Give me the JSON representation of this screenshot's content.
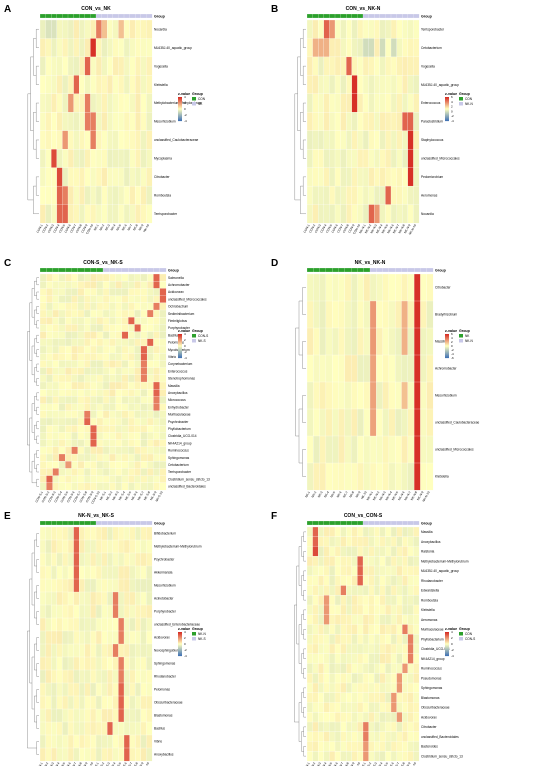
{
  "figure": {
    "legend_title": "z-value",
    "group_title": "Group",
    "colors": {
      "low": "#4575b4",
      "mid": "#ffffbf",
      "high": "#d73027",
      "grp_a": "#2ca02c",
      "grp_b": "#c8c8e8"
    }
  },
  "chart_data": [
    {
      "type": "heatmap",
      "panel": "A",
      "title": "CON_vs_NK",
      "rows": [
        "Nocardia",
        "ML635J-40_aquatic_group",
        "Vogesella",
        "Klebsiella",
        "Methylobacterium-Methylorubrum",
        "Mesorhizobium",
        "unclassified_Caulobacteraceae",
        "Mycoplasma",
        "Citrobacter",
        "Romboutsia",
        "Terrisporobacter"
      ],
      "cols": [
        "CON-1",
        "CON-2",
        "CON-3",
        "CON-4",
        "CON-5",
        "CON-6",
        "CON-7",
        "CON-8",
        "CON-9",
        "CON-10",
        "NK-1",
        "NK-2",
        "NK-3",
        "NK-4",
        "NK-5",
        "NK-6",
        "NK-7",
        "NK-8",
        "NK-9",
        "NK-10"
      ],
      "groups": [
        "CON",
        "NK"
      ],
      "ticks": [
        "4",
        "2",
        "0",
        "-2",
        "-4"
      ],
      "hot": [
        [
          0,
          10,
          2.5
        ],
        [
          0,
          11,
          1.2
        ],
        [
          0,
          14,
          1.2
        ],
        [
          1,
          9,
          4
        ],
        [
          2,
          8,
          3
        ],
        [
          3,
          6,
          3
        ],
        [
          4,
          5,
          2
        ],
        [
          4,
          8,
          2.5
        ],
        [
          5,
          8,
          2.5
        ],
        [
          5,
          9,
          2.5
        ],
        [
          6,
          4,
          2
        ],
        [
          6,
          9,
          2.5
        ],
        [
          7,
          2,
          3.5
        ],
        [
          8,
          3,
          3.5
        ],
        [
          9,
          3,
          3
        ],
        [
          9,
          4,
          2.5
        ],
        [
          10,
          3,
          3
        ],
        [
          10,
          4,
          3
        ]
      ],
      "cold": [
        [
          0,
          1,
          -0.8
        ],
        [
          0,
          2,
          -0.8
        ]
      ]
    },
    {
      "type": "heatmap",
      "panel": "B",
      "title": "CON_vs_NK-N",
      "rows": [
        "Terrisporobacter",
        "Cetobacterium",
        "Vogesella",
        "ML635J-40_aquatic_group",
        "Enterococcus",
        "Paraclostridium",
        "Staphylococcus",
        "unclassified_Micrococcales",
        "Pedomicrobium",
        "Aeromonas",
        "Nocardia"
      ],
      "cols": [
        "CON-1",
        "CON-2",
        "CON-3",
        "CON-4",
        "CON-5",
        "CON-6",
        "CON-7",
        "CON-8",
        "CON-9",
        "CON-10",
        "NK-N-1",
        "NK-N-2",
        "NK-N-3",
        "NK-N-4",
        "NK-N-5",
        "NK-N-6",
        "NK-N-7",
        "NK-N-8",
        "NK-N-9",
        "NK-N-10"
      ],
      "groups": [
        "CON",
        "NK-N"
      ],
      "ticks": [
        "6",
        "4",
        "2",
        "0",
        "-2",
        "-4"
      ],
      "hot": [
        [
          0,
          3,
          3
        ],
        [
          0,
          4,
          2
        ],
        [
          1,
          1,
          1.5
        ],
        [
          1,
          2,
          1.5
        ],
        [
          1,
          3,
          1.5
        ],
        [
          2,
          7,
          3
        ],
        [
          3,
          8,
          4
        ],
        [
          4,
          8,
          4
        ],
        [
          5,
          17,
          3
        ],
        [
          5,
          18,
          3
        ],
        [
          6,
          18,
          4
        ],
        [
          7,
          18,
          4
        ],
        [
          8,
          18,
          4
        ],
        [
          9,
          14,
          3
        ],
        [
          10,
          11,
          3
        ],
        [
          10,
          12,
          2
        ]
      ],
      "cold": [
        [
          1,
          10,
          -1
        ],
        [
          1,
          11,
          -1
        ],
        [
          1,
          13,
          -1
        ],
        [
          1,
          15,
          -1
        ]
      ]
    },
    {
      "type": "heatmap",
      "panel": "C",
      "title": "CON-S_vs_NK-S",
      "rows": [
        "Salmonella",
        "Achromobacter",
        "Acidovorax",
        "unclassified_Micrococcales",
        "Ochrobactrum",
        "Sediminibacterium",
        "Fimbriiglobus",
        "Porphyrobacter",
        "Bacillus",
        "Pelomonas",
        "Mycobacterium",
        "Vibrio",
        "Corynebacterium",
        "Enterococcus",
        "Stenotrophomonas",
        "Massilia",
        "Anoxybacillus",
        "Micrococcus",
        "Enhydrobacter",
        "Muribaculaceae",
        "Psychrobacter",
        "Phyllobacterium",
        "Clostridia_UCG-014",
        "NK4A214_group",
        "Ruminococcus",
        "Sphingomonas",
        "Cetobacterium",
        "Terrisporobacter",
        "Clostridium_sensu_stricto_13",
        "unclassified_Bacteroidales"
      ],
      "cols": [
        "CON-S-1",
        "CON-S-2",
        "CON-S-3",
        "CON-S-4",
        "CON-S-5",
        "CON-S-6",
        "CON-S-7",
        "CON-S-8",
        "CON-S-9",
        "CON-S-10",
        "NK-S-1",
        "NK-S-2",
        "NK-S-3",
        "NK-S-4",
        "NK-S-5",
        "NK-S-6",
        "NK-S-7",
        "NK-S-8",
        "NK-S-9",
        "NK-S-10"
      ],
      "groups": [
        "CON-S",
        "NK-S"
      ],
      "ticks": [
        "4",
        "2",
        "0",
        "-2",
        "-4"
      ],
      "hot": [
        [
          0,
          18,
          3
        ],
        [
          1,
          18,
          3
        ],
        [
          2,
          19,
          3
        ],
        [
          3,
          19,
          3
        ],
        [
          4,
          18,
          2.5
        ],
        [
          5,
          17,
          2.5
        ],
        [
          6,
          14,
          3
        ],
        [
          7,
          15,
          3
        ],
        [
          8,
          13,
          3
        ],
        [
          9,
          17,
          3
        ],
        [
          10,
          16,
          3
        ],
        [
          11,
          16,
          3
        ],
        [
          12,
          16,
          2.5
        ],
        [
          13,
          16,
          2.5
        ],
        [
          14,
          16,
          2.5
        ],
        [
          15,
          18,
          3
        ],
        [
          16,
          18,
          3
        ],
        [
          17,
          18,
          2.5
        ],
        [
          18,
          18,
          2.5
        ],
        [
          19,
          7,
          2.5
        ],
        [
          20,
          7,
          3
        ],
        [
          21,
          8,
          3
        ],
        [
          22,
          8,
          3
        ],
        [
          23,
          8,
          3
        ],
        [
          24,
          5,
          2.5
        ],
        [
          25,
          3,
          2.5
        ],
        [
          26,
          4,
          2
        ],
        [
          27,
          2,
          2.5
        ],
        [
          28,
          1,
          3
        ],
        [
          29,
          1,
          2.5
        ]
      ],
      "cold": []
    },
    {
      "type": "heatmap",
      "panel": "D",
      "title": "NK_vs_NK-N",
      "rows": [
        "Citrobacter",
        "Bradyrhizobium",
        "Massilia",
        "Achromobacter",
        "Mesorhizobium",
        "unclassified_Caulobacteraceae",
        "unclassified_Micrococcales",
        "Klebsiella"
      ],
      "cols": [
        "NK-1",
        "NK-2",
        "NK-3",
        "NK-4",
        "NK-5",
        "NK-6",
        "NK-7",
        "NK-8",
        "NK-9",
        "NK-10",
        "NK-N-1",
        "NK-N-2",
        "NK-N-3",
        "NK-N-4",
        "NK-N-5",
        "NK-N-6",
        "NK-N-7",
        "NK-N-8",
        "NK-N-9",
        "NK-N-10"
      ],
      "groups": [
        "NK",
        "NK-N"
      ],
      "ticks": [
        "6",
        "4",
        "2",
        "0",
        "-2",
        "-4",
        "-6"
      ],
      "hot": [
        [
          0,
          17,
          5
        ],
        [
          1,
          17,
          5
        ],
        [
          2,
          17,
          5
        ],
        [
          3,
          17,
          5
        ],
        [
          4,
          17,
          5
        ],
        [
          5,
          17,
          5
        ],
        [
          6,
          17,
          5
        ],
        [
          7,
          17,
          5
        ],
        [
          1,
          10,
          2
        ],
        [
          2,
          10,
          2
        ],
        [
          3,
          10,
          1.8
        ],
        [
          4,
          10,
          1.8
        ],
        [
          5,
          10,
          1.8
        ],
        [
          1,
          15,
          1.5
        ],
        [
          2,
          15,
          1.5
        ],
        [
          4,
          15,
          1.2
        ]
      ],
      "cold": []
    },
    {
      "type": "heatmap",
      "panel": "E",
      "title": "NK-N_vs_NK-S",
      "rows": [
        "Bifidobacterium",
        "Methylobacterium-Methylorubrum",
        "Psychrobacter",
        "Akkermansia",
        "Mesorhizobium",
        "Acinetobacter",
        "Porphyrobacter",
        "unclassified_Enterobacteriaceae",
        "Acidovorax",
        "Novosphingobium",
        "Sphingomonas",
        "Rhodanobacter",
        "Pelomonas",
        "Obscuribacteraceae",
        "Blastomonas",
        "Bacillus",
        "Vibrio",
        "Anoxybacillus"
      ],
      "cols": [
        "NK-N-1",
        "NK-N-2",
        "NK-N-3",
        "NK-N-4",
        "NK-N-5",
        "NK-N-6",
        "NK-N-7",
        "NK-N-8",
        "NK-N-9",
        "NK-N-10",
        "NK-S-1",
        "NK-S-2",
        "NK-S-3",
        "NK-S-4",
        "NK-S-5",
        "NK-S-6",
        "NK-S-7",
        "NK-S-8",
        "NK-S-9",
        "NK-S-10"
      ],
      "groups": [
        "NK-N",
        "NK-S"
      ],
      "ticks": [
        "4",
        "2",
        "0",
        "-2",
        "-4"
      ],
      "hot": [
        [
          0,
          6,
          3
        ],
        [
          1,
          6,
          3
        ],
        [
          2,
          6,
          3
        ],
        [
          3,
          6,
          3
        ],
        [
          4,
          6,
          3
        ],
        [
          5,
          13,
          2.5
        ],
        [
          6,
          13,
          2.5
        ],
        [
          7,
          14,
          2.5
        ],
        [
          8,
          14,
          2.5
        ],
        [
          9,
          13,
          2.5
        ],
        [
          10,
          14,
          2.5
        ],
        [
          11,
          14,
          2.5
        ],
        [
          12,
          14,
          3
        ],
        [
          13,
          14,
          3
        ],
        [
          14,
          14,
          3
        ],
        [
          15,
          12,
          3
        ],
        [
          16,
          15,
          3
        ],
        [
          17,
          15,
          3
        ]
      ],
      "cold": []
    },
    {
      "type": "heatmap",
      "panel": "F",
      "title": "CON_vs_CON-S",
      "rows": [
        "Massilia",
        "Anoxybacillus",
        "Ralstonia",
        "Methylobacterium-Methylorubrum",
        "ML635J-40_aquatic_group",
        "Rhodanobacter",
        "Edwardsiella",
        "Romboutsia",
        "Klebsiella",
        "Aeromonas",
        "Muribaculaceae",
        "Phyllobacterium",
        "Clostridia_UCG-014",
        "NK4A214_group",
        "Ruminococcus",
        "Pseudomonas",
        "Sphingomonas",
        "Blastomonas",
        "Obscuribacteraceae",
        "Acidovorax",
        "Citrobacter",
        "unclassified_Bacteroidales",
        "Bacteroides",
        "Clostridium_sensu_stricto_13"
      ],
      "cols": [
        "CON-1",
        "CON-2",
        "CON-3",
        "CON-4",
        "CON-5",
        "CON-6",
        "CON-7",
        "CON-8",
        "CON-9",
        "CON-10",
        "CON-S-1",
        "CON-S-2",
        "CON-S-3",
        "CON-S-4",
        "CON-S-5",
        "CON-S-6",
        "CON-S-7",
        "CON-S-8",
        "CON-S-9",
        "CON-S-10"
      ],
      "groups": [
        "CON",
        "CON-S"
      ],
      "ticks": [
        "4",
        "2",
        "0",
        "-2",
        "-4"
      ],
      "hot": [
        [
          0,
          1,
          3
        ],
        [
          1,
          1,
          3
        ],
        [
          2,
          1,
          3.5
        ],
        [
          3,
          9,
          3
        ],
        [
          4,
          9,
          3
        ],
        [
          5,
          9,
          3
        ],
        [
          6,
          6,
          2.5
        ],
        [
          7,
          3,
          2
        ],
        [
          8,
          3,
          2
        ],
        [
          9,
          3,
          2
        ],
        [
          10,
          17,
          2.5
        ],
        [
          11,
          18,
          2.5
        ],
        [
          12,
          18,
          2.5
        ],
        [
          13,
          18,
          2.5
        ],
        [
          14,
          17,
          2
        ],
        [
          15,
          16,
          2
        ],
        [
          16,
          16,
          2
        ],
        [
          17,
          15,
          2
        ],
        [
          18,
          15,
          2
        ],
        [
          19,
          16,
          2
        ],
        [
          20,
          10,
          2.5
        ],
        [
          21,
          10,
          2.5
        ],
        [
          22,
          10,
          2
        ],
        [
          23,
          10,
          2
        ]
      ],
      "cold": []
    }
  ]
}
